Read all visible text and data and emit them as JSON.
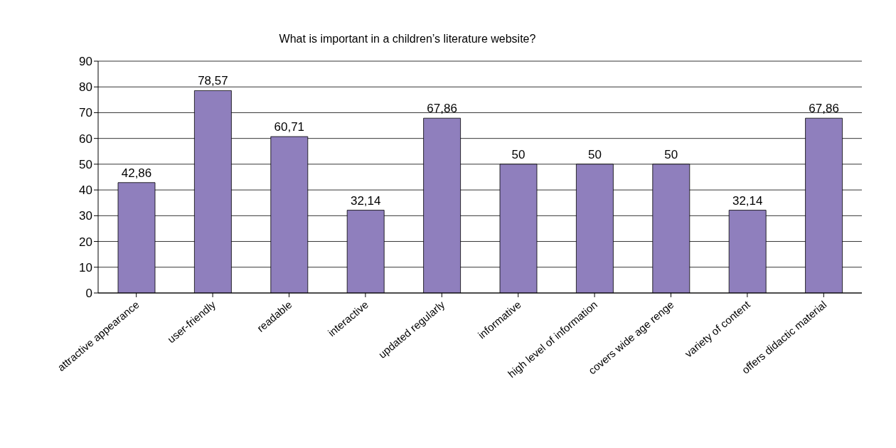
{
  "chart_data": {
    "type": "bar",
    "title": "What is important in a children’s literature website?",
    "categories": [
      "attractive appearance",
      "user-friendly",
      "readable",
      "interactive",
      "updated regularly",
      "informative",
      "high level of information",
      "covers wide age renge",
      "variety of content",
      "offers didactic material"
    ],
    "values": [
      42.86,
      78.57,
      60.71,
      32.14,
      67.86,
      50,
      50,
      50,
      32.14,
      67.86
    ],
    "value_labels": [
      "42,86",
      "78,57",
      "60,71",
      "32,14",
      "67,86",
      "50",
      "50",
      "50",
      "32,14",
      "67,86"
    ],
    "color": "#8f7fbd",
    "ylim": [
      0,
      90
    ],
    "yticks": [
      0,
      10,
      20,
      30,
      40,
      50,
      60,
      70,
      80,
      90
    ],
    "grid": "y"
  }
}
